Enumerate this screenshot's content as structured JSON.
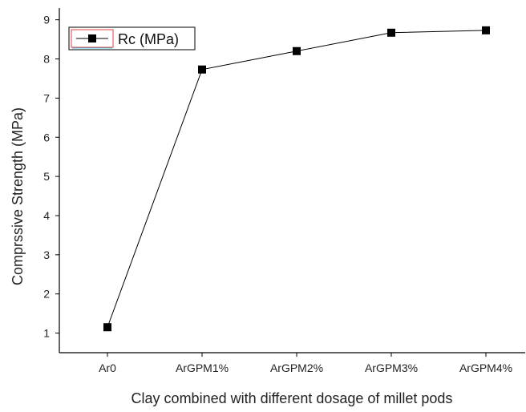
{
  "chart_data": {
    "type": "line",
    "categories": [
      "Ar0",
      "ArGPM1%",
      "ArGPM2%",
      "ArGPM3%",
      "ArGPM4%"
    ],
    "series": [
      {
        "name": "Rc (MPa)",
        "values": [
          1.15,
          7.73,
          8.2,
          8.67,
          8.73
        ]
      }
    ],
    "xlabel": "Clay combined with different dosage of millet pods",
    "ylabel": "Comprssive Strength (MPa)",
    "ylim": [
      0.5,
      9.3
    ],
    "yticks": [
      "1",
      "2",
      "3",
      "4",
      "5",
      "6",
      "7",
      "8",
      "9"
    ],
    "grid": false,
    "legend_position": "top-left",
    "marker": "square",
    "colors": {
      "line": "#000000",
      "marker": "#000000",
      "axis": "#000000",
      "legend_accent": "#e04040",
      "legend_accent2": "#40c0e0"
    }
  }
}
